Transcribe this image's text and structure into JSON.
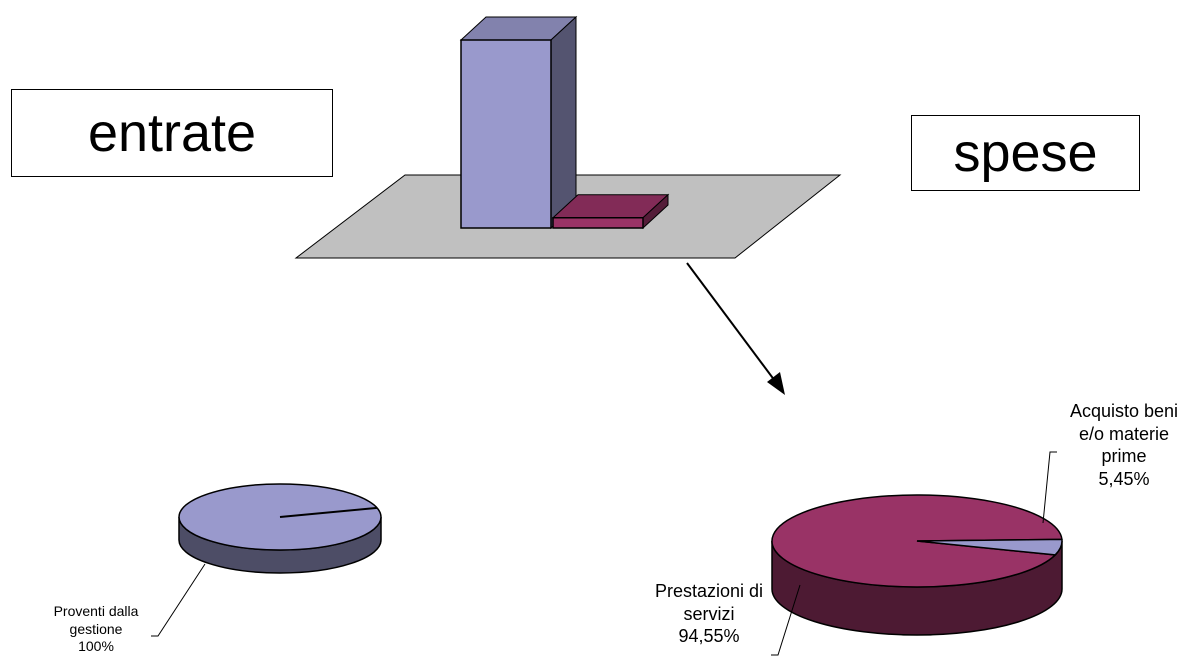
{
  "labels": {
    "entrate": "entrate",
    "spese": "spese"
  },
  "chart_data": [
    {
      "type": "bar",
      "categories": [
        "entrate",
        "spese"
      ],
      "values": [
        100,
        5.45
      ],
      "colors": [
        "#9999cc",
        "#993366"
      ]
    },
    {
      "type": "pie",
      "slices": [
        {
          "label": [
            "Proventi dalla",
            "gestione"
          ],
          "value_label": "100%",
          "value": 100,
          "color": "#9999cc"
        }
      ]
    },
    {
      "type": "pie",
      "slices": [
        {
          "label": [
            "Prestazioni di",
            "servizi"
          ],
          "value_label": "94,55%",
          "value": 94.55,
          "color": "#993366"
        },
        {
          "label": [
            "Acquisto beni",
            "e/o materie",
            "prime"
          ],
          "value_label": "5,45%",
          "value": 5.45,
          "color": "#9999cc"
        }
      ]
    }
  ]
}
